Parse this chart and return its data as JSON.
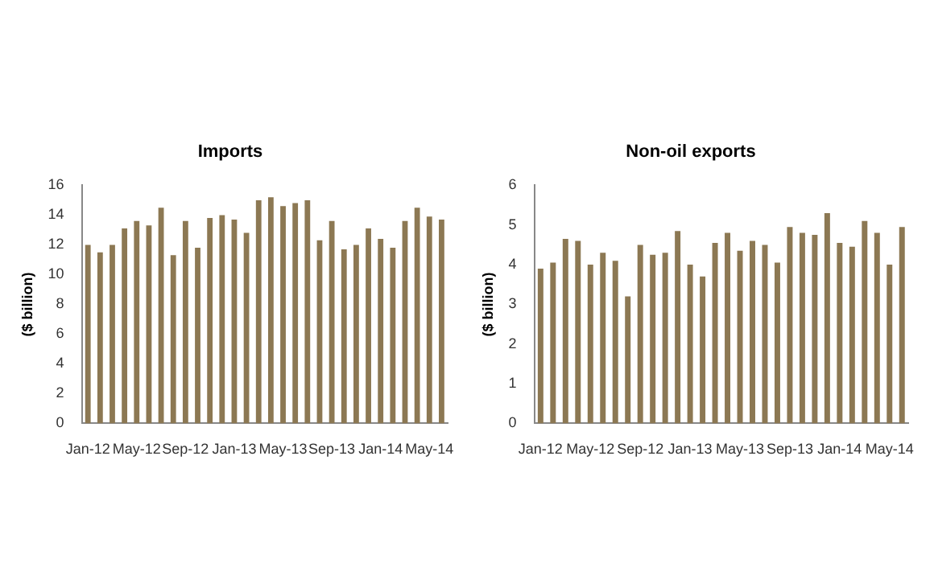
{
  "chart_data": [
    {
      "type": "bar",
      "title": "Imports",
      "ylabel": "($ billion)",
      "categories": [
        "Jan-12",
        null,
        null,
        null,
        "May-12",
        null,
        null,
        null,
        "Sep-12",
        null,
        null,
        null,
        "Jan-13",
        null,
        null,
        null,
        "May-13",
        null,
        null,
        null,
        "Sep-13",
        null,
        null,
        null,
        "Jan-14",
        null,
        null,
        null,
        "May-14",
        null
      ],
      "values": [
        12,
        11.5,
        12,
        13.1,
        13.6,
        13.3,
        14.5,
        11.3,
        13.6,
        11.8,
        13.8,
        14,
        13.7,
        12.8,
        15,
        15.2,
        14.6,
        14.8,
        15,
        12.3,
        13.6,
        11.7,
        12,
        13.1,
        12.4,
        11.8,
        13.6,
        14.5,
        13.9,
        13.7
      ],
      "color": "#8c7853",
      "ylim": [
        0,
        16
      ],
      "yticks": [
        0,
        2,
        4,
        6,
        8,
        10,
        12,
        14,
        16
      ]
    },
    {
      "type": "bar",
      "title": "Non-oil exports",
      "ylabel": "($ billion)",
      "categories": [
        "Jan-12",
        null,
        null,
        null,
        "May-12",
        null,
        null,
        null,
        "Sep-12",
        null,
        null,
        null,
        "Jan-13",
        null,
        null,
        null,
        "May-13",
        null,
        null,
        null,
        "Sep-13",
        null,
        null,
        null,
        "Jan-14",
        null,
        null,
        null,
        "May-14",
        null
      ],
      "values": [
        3.9,
        4.05,
        4.65,
        4.6,
        4.0,
        4.3,
        4.1,
        3.2,
        4.5,
        4.25,
        4.3,
        4.85,
        4.0,
        3.7,
        4.55,
        4.8,
        4.35,
        4.6,
        4.5,
        4.05,
        4.95,
        4.8,
        4.75,
        5.3,
        4.55,
        4.45,
        5.1,
        4.8,
        4.0,
        4.95
      ],
      "color": "#8c7853",
      "ylim": [
        0,
        6
      ],
      "yticks": [
        0,
        1,
        2,
        3,
        4,
        5,
        6
      ]
    }
  ]
}
